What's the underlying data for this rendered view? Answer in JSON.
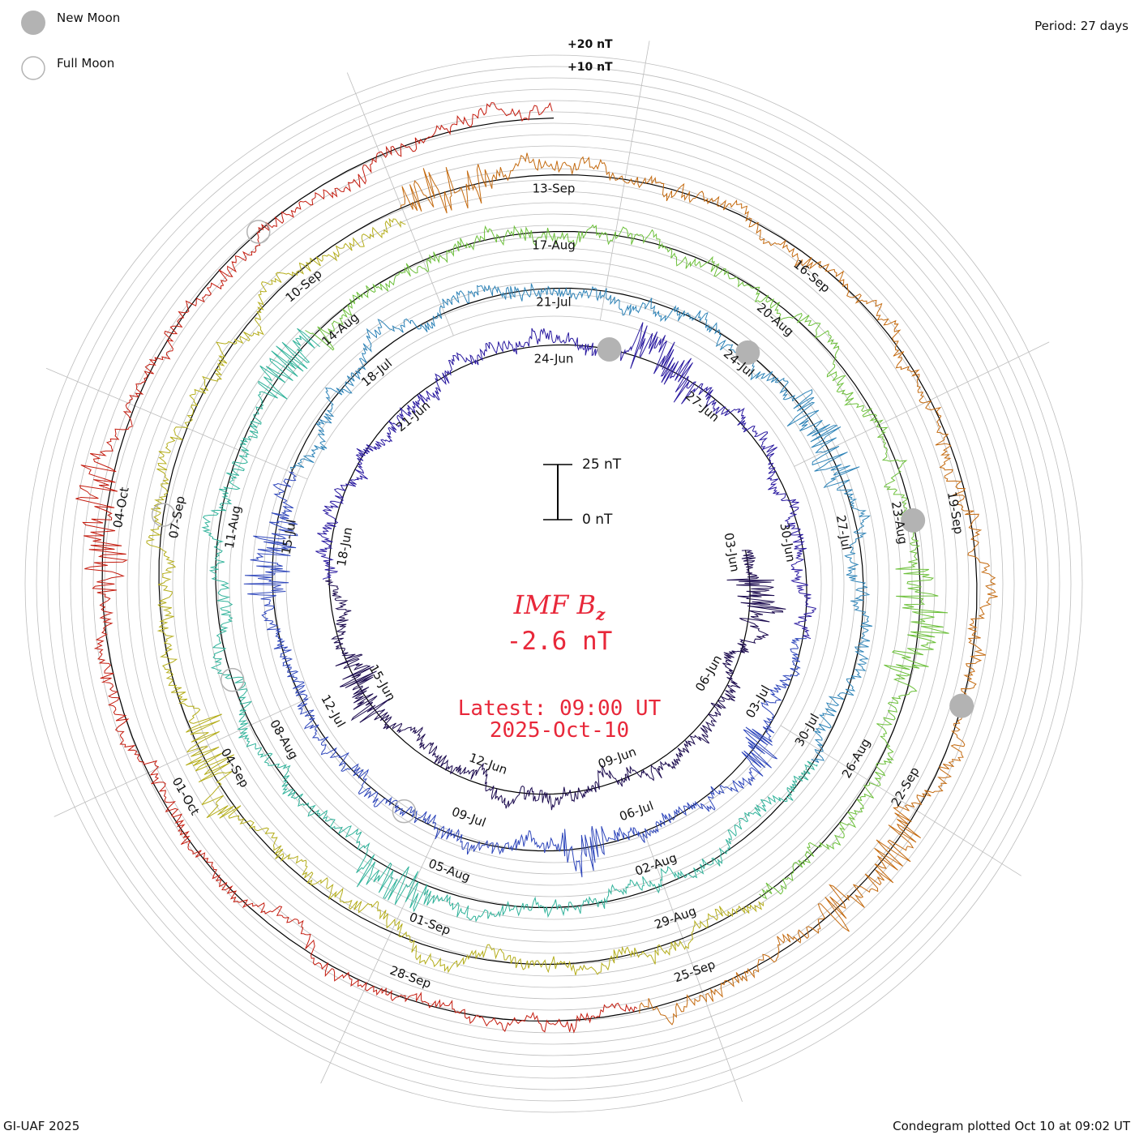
{
  "header": {
    "legend_new_moon": "New Moon",
    "legend_full_moon": "Full Moon",
    "period": "Period: 27 days",
    "scale_20": "+20 nT",
    "scale_10": "+10 nT"
  },
  "footer": {
    "credit": "GI-UAF 2025",
    "plotted": "Condegram plotted Oct 10 at 09:02 UT"
  },
  "center": {
    "scale_top": "25 nT",
    "scale_bottom": "0 nT",
    "title_main": "IMF B",
    "title_sub": "z",
    "current_value": "-2.6 nT",
    "latest_time": "Latest: 09:00 UT",
    "latest_date": "2025-Oct-10"
  },
  "colors": {
    "moon_fill": "#b3b3b3",
    "accent_text": "#e8283a",
    "grid": "#bdbdbd",
    "baseline": "#000000"
  },
  "chart_data": {
    "type": "line",
    "title": "IMF Bz",
    "subtitle": "Condegram (spiral), period 27 days",
    "ylabel": "nT",
    "current_value": -2.6,
    "scale_marks_nT": [
      10,
      20
    ],
    "center_scale_nT": [
      0,
      25
    ],
    "period_days": 27,
    "rings": [
      {
        "ring": 1,
        "color": "#1b0a4e",
        "start": "2025-Jun-03",
        "date_ticks": [
          "03-Jun",
          "06-Jun",
          "09-Jun"
        ]
      },
      {
        "ring": 2,
        "color": "#2a1aa0",
        "start": "2025-Jun-15",
        "date_ticks": [
          "15-Jun",
          "18-Jun",
          "21-Jun",
          "12-Jul"
        ]
      },
      {
        "ring": 3,
        "color": "#2e46bb",
        "start": "2025-Jun-24",
        "date_ticks": [
          "24-Jun",
          "27-Jun",
          "30-Jun",
          "03-Jul",
          "06-Jul",
          "09-Jul"
        ]
      },
      {
        "ring": 4,
        "color": "#2f84b8",
        "start": "2025-Jul-12",
        "date_ticks": [
          "12-Jul",
          "15-Jul",
          "18-Jul"
        ]
      },
      {
        "ring": 5,
        "color": "#31b39b",
        "start": "2025-Jul-21",
        "date_ticks": [
          "21-Jul",
          "24-Jul",
          "27-Jul",
          "30-Jul",
          "02-Aug",
          "05-Aug",
          "08-Aug"
        ]
      },
      {
        "ring": 6,
        "color": "#6cc03a",
        "start": "2025-Aug-11",
        "date_ticks": [
          "11-Aug",
          "14-Aug",
          "17-Aug",
          "20-Aug",
          "23-Aug",
          "26-Aug",
          "29-Aug",
          "01-Sep"
        ]
      },
      {
        "ring": 7,
        "color": "#b4ad1a",
        "start": "2025-Sep-04",
        "date_ticks": [
          "04-Sep",
          "07-Sep",
          "10-Sep",
          "13-Sep",
          "16-Sep",
          "19-Sep"
        ]
      },
      {
        "ring": 8,
        "color": "#c46a0f",
        "start": "2025-Sep-22",
        "date_ticks": [
          "22-Sep",
          "25-Sep",
          "28-Sep",
          "01-Oct",
          "04-Oct"
        ]
      },
      {
        "ring": 9,
        "color": "#c41b0e",
        "start": "2025-Oct-04",
        "date_ticks": [
          "04-Oct"
        ]
      }
    ],
    "date_labels": [
      "03-Jun",
      "06-Jun",
      "09-Jun",
      "12-Jun",
      "15-Jun",
      "18-Jun",
      "21-Jun",
      "24-Jun",
      "27-Jun",
      "30-Jun",
      "03-Jul",
      "06-Jul",
      "09-Jul",
      "12-Jul",
      "15-Jul",
      "18-Jul",
      "21-Jul",
      "24-Jul",
      "27-Jul",
      "30-Jul",
      "02-Aug",
      "05-Aug",
      "08-Aug",
      "11-Aug",
      "14-Aug",
      "17-Aug",
      "20-Aug",
      "23-Aug",
      "26-Aug",
      "29-Aug",
      "01-Sep",
      "04-Sep",
      "07-Sep",
      "10-Sep",
      "13-Sep",
      "16-Sep",
      "19-Sep",
      "22-Sep",
      "25-Sep",
      "28-Sep",
      "01-Oct",
      "04-Oct"
    ],
    "moon_phases": [
      {
        "phase": "new",
        "date": "2025-Jun-25"
      },
      {
        "phase": "new",
        "date": "2025-Jul-24"
      },
      {
        "phase": "new",
        "date": "2025-Aug-23"
      },
      {
        "phase": "new",
        "date": "2025-Sep-21"
      },
      {
        "phase": "full",
        "date": "2025-Jul-10"
      },
      {
        "phase": "full",
        "date": "2025-Aug-09"
      },
      {
        "phase": "full",
        "date": "2025-Sep-07"
      },
      {
        "phase": "full",
        "date": "2025-Oct-07"
      }
    ],
    "latest": "2025-Oct-10 09:00 UT"
  }
}
